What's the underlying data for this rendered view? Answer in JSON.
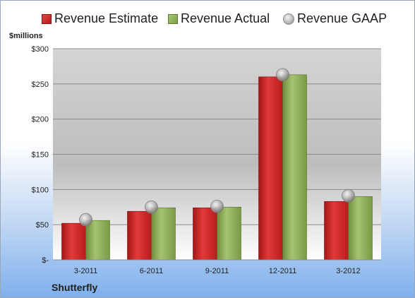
{
  "legend": {
    "estimate": "Revenue Estimate",
    "actual": "Revenue Actual",
    "gaap": "Revenue GAAP"
  },
  "units": "$millions",
  "company": "Shutterfly",
  "colors": {
    "estimate": "#c62828",
    "actual": "#8aab52",
    "gaap": "#b0b0b0"
  },
  "chart_data": {
    "type": "bar",
    "categories": [
      "3-2011",
      "6-2011",
      "9-2011",
      "12-2011",
      "3-2012"
    ],
    "series": [
      {
        "name": "Revenue Estimate",
        "values": [
          52,
          69,
          74,
          260,
          83
        ]
      },
      {
        "name": "Revenue Actual",
        "values": [
          56,
          74,
          75,
          263,
          90
        ]
      },
      {
        "name": "Revenue GAAP",
        "type": "scatter",
        "values": [
          57,
          75,
          76,
          263,
          91
        ]
      }
    ],
    "ylim": [
      0,
      300
    ],
    "yticks": [
      0,
      50,
      100,
      150,
      200,
      250,
      300
    ],
    "ytick_labels": [
      "$-",
      "$50",
      "$100",
      "$150",
      "$200",
      "$250",
      "$300"
    ],
    "grid": true,
    "legend_position": "top"
  }
}
